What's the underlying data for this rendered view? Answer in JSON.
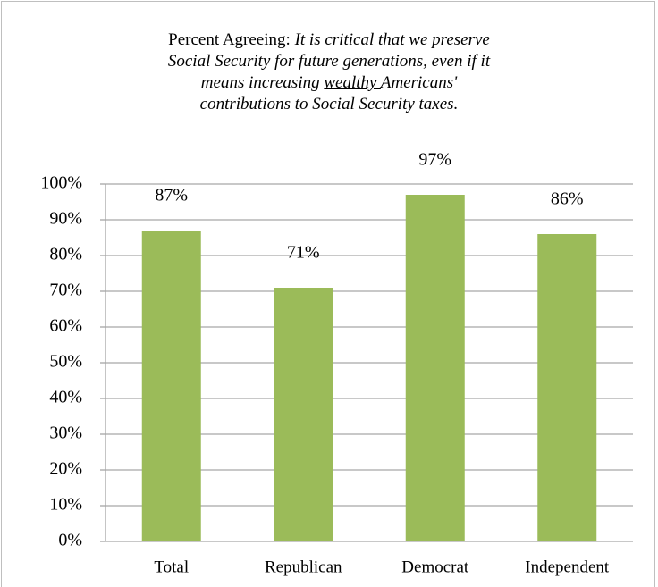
{
  "chart_data": {
    "type": "bar",
    "title": [
      "Percent Agreeing: ",
      "It is critical that we preserve",
      "Social Security for future generations, even if it",
      "means increasing ",
      "wealthy ",
      "Americans'",
      "contributions to Social Security taxes."
    ],
    "categories": [
      "Total",
      "Republican",
      "Democrat",
      "Independent"
    ],
    "values": [
      87,
      71,
      97,
      86
    ],
    "value_labels": [
      "87%",
      "71%",
      "97%",
      "86%"
    ],
    "color": "#9bbb59",
    "ylim": [
      0,
      100
    ],
    "yticks": [
      {
        "value": 0,
        "label": "0%"
      },
      {
        "value": 10,
        "label": "10%"
      },
      {
        "value": 20,
        "label": "20%"
      },
      {
        "value": 30,
        "label": "30%"
      },
      {
        "value": 40,
        "label": "40%"
      },
      {
        "value": 50,
        "label": "50%"
      },
      {
        "value": 60,
        "label": "60%"
      },
      {
        "value": 70,
        "label": "70%"
      },
      {
        "value": 80,
        "label": "80%"
      },
      {
        "value": 90,
        "label": "90%"
      },
      {
        "value": 100,
        "label": "100%"
      }
    ],
    "grid": true
  }
}
